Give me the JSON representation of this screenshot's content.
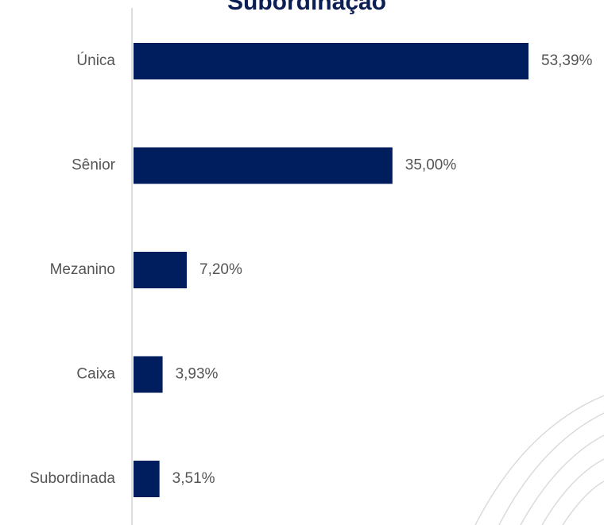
{
  "chart_data": {
    "type": "bar",
    "orientation": "horizontal",
    "title": "Subordinação",
    "categories": [
      "Única",
      "Sênior",
      "Mezanino",
      "Caixa",
      "Subordinada"
    ],
    "values": [
      53.39,
      35.0,
      7.2,
      3.93,
      3.51
    ],
    "value_labels": [
      "53,39%",
      "35,00%",
      "7,20%",
      "3,93%",
      "3,51%"
    ],
    "xlabel": "",
    "ylabel": "",
    "xlim": [
      0,
      53.39
    ],
    "grid": false,
    "legend": "none",
    "bar_color": "#001e5e"
  }
}
